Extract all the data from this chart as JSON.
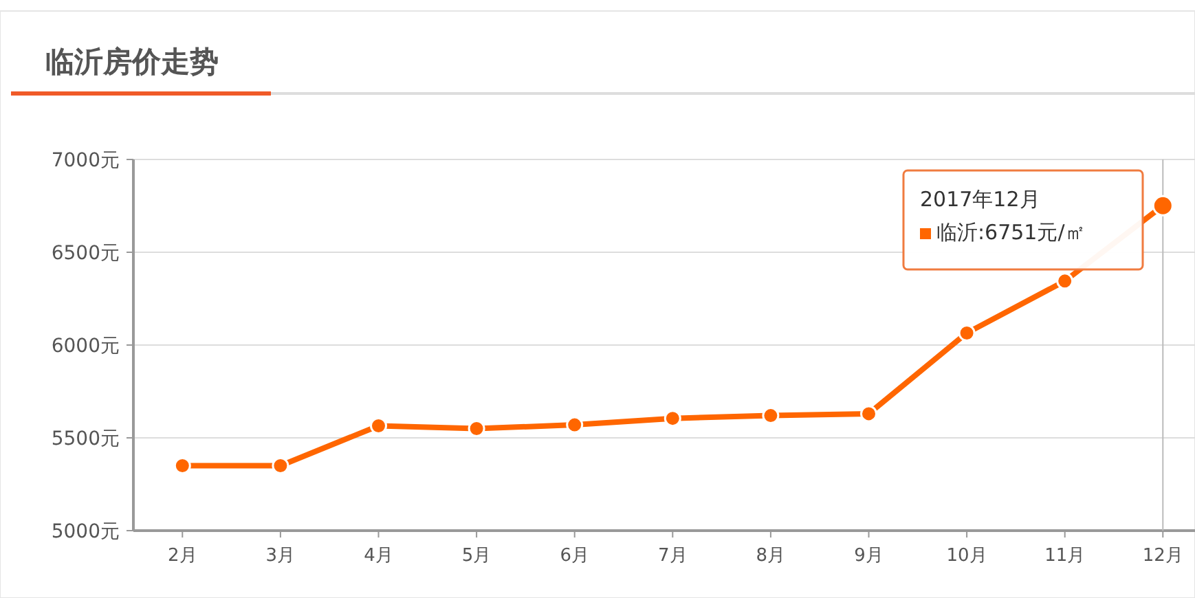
{
  "chart_data": {
    "type": "line",
    "title": "临沂房价走势",
    "categories": [
      "2月",
      "3月",
      "4月",
      "5月",
      "6月",
      "7月",
      "8月",
      "9月",
      "10月",
      "11月",
      "12月"
    ],
    "series": [
      {
        "color": "#ff6600",
        "values": [
          5350,
          5350,
          5565,
          5550,
          5570,
          5605,
          5620,
          5630,
          6065,
          6345,
          6751
        ]
      }
    ],
    "ylim": [
      5000,
      7000
    ],
    "yticks": [
      {
        "value": 5000,
        "label": "5000元"
      },
      {
        "value": 5500,
        "label": "5500元"
      },
      {
        "value": 6000,
        "label": "6000元"
      },
      {
        "value": 6500,
        "label": "6500元"
      },
      {
        "value": 7000,
        "label": "7000元"
      }
    ],
    "grid": "y",
    "marker": "circle",
    "line_style": "solid",
    "ref_lines": [
      {
        "axis": "x",
        "value": "12月",
        "color": "#bbbbbb"
      }
    ],
    "annotations": [
      "2017年12月",
      "临沂:6751元/㎡"
    ]
  }
}
